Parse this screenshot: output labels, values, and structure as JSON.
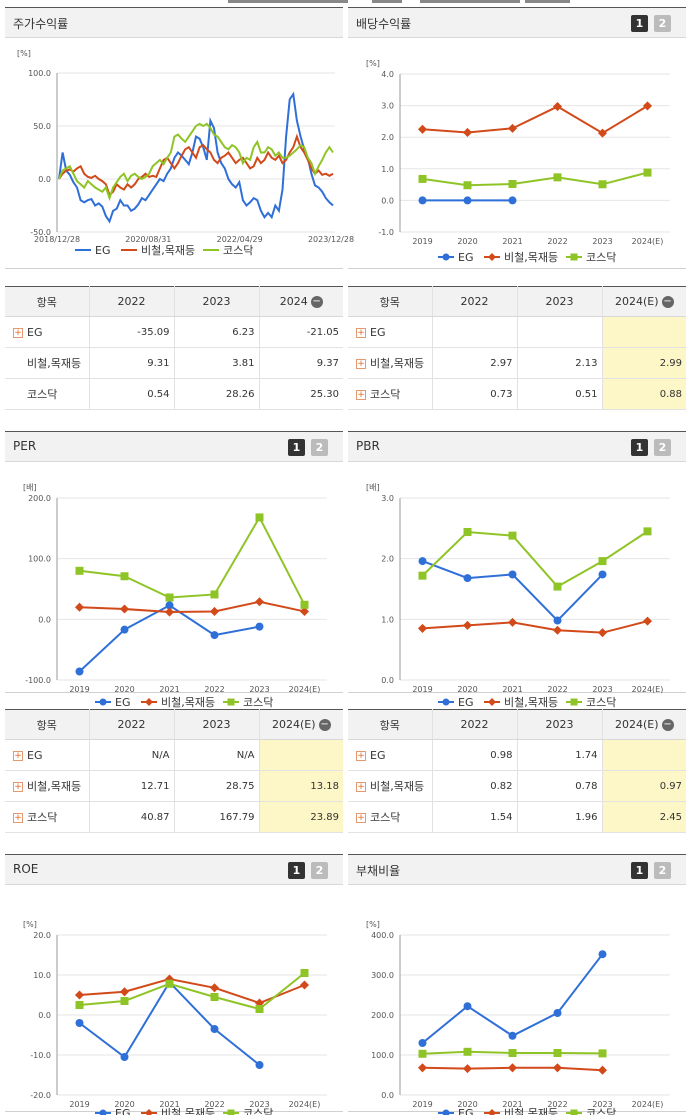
{
  "colors": {
    "eg": "#2f6fd8",
    "steel": "#d24a1a",
    "kosdaq": "#8fc426",
    "grid": "#e6e6e6",
    "axis": "#999"
  },
  "legend_labels": {
    "eg": "EG",
    "steel": "비철,목재등",
    "kosdaq": "코스닥"
  },
  "page_buttons": [
    "1",
    "2"
  ],
  "charts": {
    "stock": {
      "title": "주가수익률",
      "unit": "[%]",
      "chart_data": {
        "type": "line",
        "x_ticks": [
          "2018/12/28",
          "2020/08/31",
          "2022/04/29",
          "2023/12/28"
        ],
        "y_ticks": [
          "100.0",
          "50.0",
          "0.0",
          "-50.0"
        ],
        "ylim": [
          -50,
          100
        ],
        "series": [
          {
            "key": "eg",
            "values": [
              0,
              25,
              8,
              4,
              -3,
              -8,
              -20,
              -22,
              -20,
              -19,
              -25,
              -23,
              -26,
              -35,
              -40,
              -30,
              -28,
              -20,
              -25,
              -25,
              -30,
              -28,
              -24,
              -18,
              -20,
              -15,
              -10,
              -5,
              0,
              -2,
              5,
              10,
              20,
              25,
              22,
              18,
              14,
              25,
              40,
              38,
              30,
              18,
              55,
              48,
              25,
              15,
              10,
              0,
              -5,
              -8,
              -3,
              -20,
              -25,
              -22,
              -18,
              -20,
              -30,
              -36,
              -32,
              -36,
              -25,
              -30,
              -10,
              40,
              75,
              80,
              55,
              40,
              28,
              20,
              5,
              -6,
              -8,
              -12,
              -18,
              -22,
              -25
            ]
          },
          {
            "key": "steel",
            "values": [
              0,
              5,
              8,
              9,
              7,
              10,
              12,
              5,
              2,
              1,
              3,
              0,
              -2,
              -5,
              -15,
              -12,
              -5,
              -8,
              -10,
              -5,
              -8,
              -5,
              0,
              2,
              5,
              2,
              3,
              2,
              10,
              18,
              20,
              15,
              10,
              15,
              22,
              28,
              30,
              25,
              20,
              30,
              32,
              28,
              25,
              18,
              15,
              20,
              22,
              25,
              20,
              15,
              18,
              20,
              15,
              10,
              12,
              20,
              15,
              18,
              25,
              20,
              18,
              22,
              15,
              18,
              25,
              30,
              40,
              30,
              25,
              18,
              10,
              5,
              8,
              4,
              5,
              3,
              5
            ]
          },
          {
            "key": "kosdaq",
            "values": [
              0,
              8,
              10,
              12,
              5,
              -2,
              -5,
              -8,
              -2,
              -5,
              -8,
              -10,
              -12,
              -8,
              -18,
              -8,
              -3,
              2,
              5,
              -2,
              3,
              5,
              2,
              0,
              2,
              5,
              12,
              15,
              18,
              14,
              20,
              25,
              40,
              42,
              38,
              35,
              40,
              45,
              50,
              52,
              50,
              52,
              48,
              42,
              40,
              35,
              30,
              28,
              32,
              30,
              25,
              15,
              20,
              18,
              30,
              35,
              25,
              25,
              30,
              28,
              22,
              25,
              20,
              20,
              22,
              25,
              28,
              32,
              30,
              20,
              15,
              5,
              12,
              18,
              25,
              30,
              25
            ]
          }
        ]
      }
    },
    "dividend": {
      "title": "배당수익률",
      "unit": "[%]",
      "chart_data": {
        "type": "line",
        "categories": [
          "2019",
          "2020",
          "2021",
          "2022",
          "2023",
          "2024(E)"
        ],
        "y_ticks": [
          "4.0",
          "3.0",
          "2.0",
          "1.0",
          "0.0",
          "-1.0"
        ],
        "ylim": [
          -1,
          4
        ],
        "series": [
          {
            "key": "eg",
            "values": [
              0,
              0,
              0,
              null,
              null,
              null
            ]
          },
          {
            "key": "steel",
            "values": [
              2.25,
              2.15,
              2.28,
              2.97,
              2.13,
              2.99
            ]
          },
          {
            "key": "kosdaq",
            "values": [
              0.68,
              0.48,
              0.52,
              0.73,
              0.51,
              0.88
            ]
          }
        ]
      }
    },
    "per": {
      "title": "PER",
      "unit": "[배]",
      "chart_data": {
        "type": "line",
        "categories": [
          "2019",
          "2020",
          "2021",
          "2022",
          "2023",
          "2024(E)"
        ],
        "y_ticks": [
          "200.0",
          "100.0",
          "0.0",
          "-100.0"
        ],
        "ylim": [
          -100,
          200
        ],
        "series": [
          {
            "key": "eg",
            "values": [
              -86,
              -17,
              23,
              -26,
              -12,
              null
            ]
          },
          {
            "key": "steel",
            "values": [
              20,
              17,
              12,
              13,
              29,
              13
            ]
          },
          {
            "key": "kosdaq",
            "values": [
              80,
              71,
              36,
              41,
              168,
              24
            ]
          }
        ]
      }
    },
    "pbr": {
      "title": "PBR",
      "unit": "[배]",
      "chart_data": {
        "type": "line",
        "categories": [
          "2019",
          "2020",
          "2021",
          "2022",
          "2023",
          "2024(E)"
        ],
        "y_ticks": [
          "3.0",
          "2.0",
          "1.0",
          "0.0"
        ],
        "ylim": [
          0,
          3
        ],
        "series": [
          {
            "key": "eg",
            "values": [
              1.96,
              1.68,
              1.74,
              0.98,
              1.74,
              null
            ]
          },
          {
            "key": "steel",
            "values": [
              0.85,
              0.9,
              0.95,
              0.82,
              0.78,
              0.97
            ]
          },
          {
            "key": "kosdaq",
            "values": [
              1.72,
              2.44,
              2.38,
              1.54,
              1.96,
              2.45
            ]
          }
        ]
      }
    },
    "roe": {
      "title": "ROE",
      "unit": "[%]",
      "chart_data": {
        "type": "line",
        "categories": [
          "2019",
          "2020",
          "2021",
          "2022",
          "2023",
          "2024(E)"
        ],
        "y_ticks": [
          "20.0",
          "10.0",
          "0.0",
          "-10.0",
          "-20.0"
        ],
        "ylim": [
          -20,
          20
        ],
        "series": [
          {
            "key": "eg",
            "values": [
              -2,
              -10.5,
              8.2,
              -3.5,
              -12.5,
              null
            ]
          },
          {
            "key": "steel",
            "values": [
              5,
              5.8,
              9,
              6.8,
              3,
              7.5
            ]
          },
          {
            "key": "kosdaq",
            "values": [
              2.5,
              3.5,
              7.8,
              4.5,
              1.5,
              10.5
            ]
          }
        ]
      }
    },
    "debt": {
      "title": "부채비율",
      "unit": "[%]",
      "chart_data": {
        "type": "line",
        "categories": [
          "2019",
          "2020",
          "2021",
          "2022",
          "2023",
          "2024(E)"
        ],
        "y_ticks": [
          "400.0",
          "300.0",
          "200.0",
          "100.0",
          "0.0"
        ],
        "ylim": [
          0,
          400
        ],
        "series": [
          {
            "key": "eg",
            "values": [
              130,
              222,
              148,
              205,
              352,
              null
            ]
          },
          {
            "key": "steel",
            "values": [
              68,
              66,
              68,
              68,
              62,
              null
            ]
          },
          {
            "key": "kosdaq",
            "values": [
              103,
              108,
              105,
              105,
              104,
              null
            ]
          }
        ]
      }
    }
  },
  "tables": {
    "stock": {
      "header": [
        "항목",
        "2022",
        "2023",
        "2024"
      ],
      "rows": [
        {
          "name": "EG",
          "values": [
            "-35.09",
            "6.23",
            "-21.05"
          ]
        },
        {
          "name": "비철,목재등",
          "values": [
            "9.31",
            "3.81",
            "9.37"
          ]
        },
        {
          "name": "코스닥",
          "values": [
            "0.54",
            "28.26",
            "25.30"
          ]
        }
      ]
    },
    "dividend": {
      "header": [
        "항목",
        "2022",
        "2023",
        "2024(E)"
      ],
      "rows": [
        {
          "name": "EG",
          "values": [
            "",
            "",
            ""
          ]
        },
        {
          "name": "비철,목재등",
          "values": [
            "2.97",
            "2.13",
            "2.99"
          ]
        },
        {
          "name": "코스닥",
          "values": [
            "0.73",
            "0.51",
            "0.88"
          ]
        }
      ]
    },
    "per": {
      "header": [
        "항목",
        "2022",
        "2023",
        "2024(E)"
      ],
      "rows": [
        {
          "name": "EG",
          "values": [
            "N/A",
            "N/A",
            ""
          ]
        },
        {
          "name": "비철,목재등",
          "values": [
            "12.71",
            "28.75",
            "13.18"
          ]
        },
        {
          "name": "코스닥",
          "values": [
            "40.87",
            "167.79",
            "23.89"
          ]
        }
      ]
    },
    "pbr": {
      "header": [
        "항목",
        "2022",
        "2023",
        "2024(E)"
      ],
      "rows": [
        {
          "name": "EG",
          "values": [
            "0.98",
            "1.74",
            ""
          ]
        },
        {
          "name": "비철,목재등",
          "values": [
            "0.82",
            "0.78",
            "0.97"
          ]
        },
        {
          "name": "코스닥",
          "values": [
            "1.54",
            "1.96",
            "2.45"
          ]
        }
      ]
    }
  }
}
